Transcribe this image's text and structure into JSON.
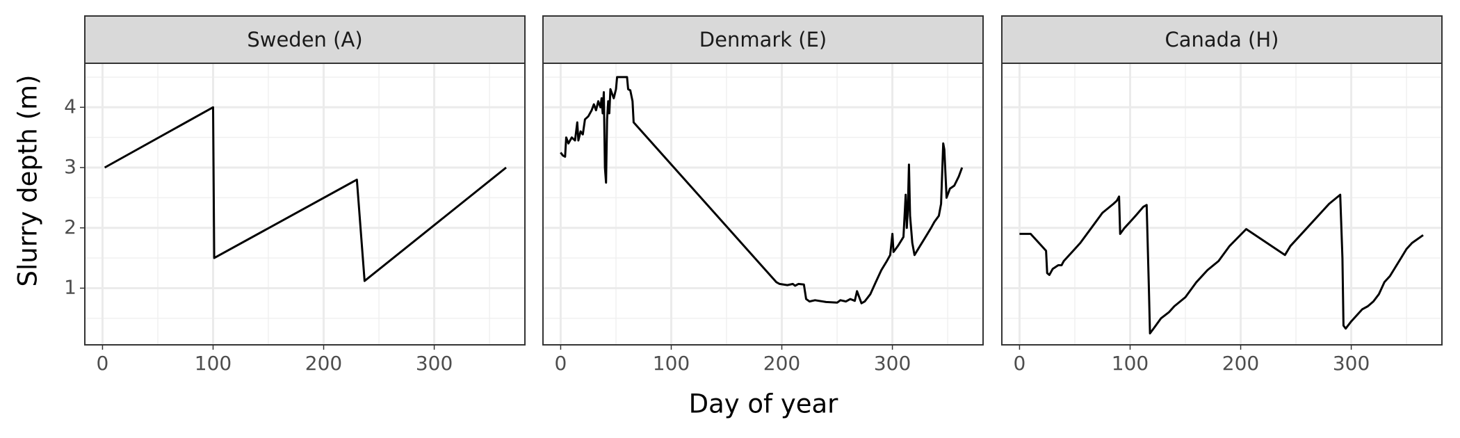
{
  "chart_data": {
    "type": "line",
    "xlabel": "Day of year",
    "ylabel": "Slurry depth (m)",
    "xlim": [
      -16,
      382
    ],
    "xticks": [
      0,
      100,
      200,
      300
    ],
    "ylim": [
      0.06,
      4.73
    ],
    "yticks": [
      1,
      2,
      3,
      4
    ],
    "grid": true,
    "color": "#000000",
    "facets": [
      {
        "title": "Sweden (A)",
        "x": [
          2,
          100,
          101,
          230,
          237,
          365
        ],
        "values": [
          3.0,
          4.0,
          1.5,
          2.8,
          1.12,
          3.0
        ]
      },
      {
        "title": "Denmark (E)",
        "x": [
          0,
          2,
          4,
          5,
          7,
          10,
          13,
          15,
          16,
          18,
          20,
          22,
          25,
          28,
          30,
          32,
          34,
          36,
          37,
          38,
          39,
          40,
          41,
          42,
          43,
          44,
          45,
          47,
          48,
          50,
          51,
          60,
          61,
          63,
          65,
          66,
          195,
          198,
          205,
          210,
          212,
          215,
          220,
          222,
          225,
          230,
          240,
          250,
          253,
          258,
          262,
          266,
          268,
          270,
          272,
          275,
          280,
          285,
          290,
          295,
          298,
          300,
          301,
          305,
          310,
          312,
          313,
          314,
          315,
          316,
          318,
          320,
          325,
          330,
          335,
          338,
          342,
          344,
          346,
          347,
          349,
          352,
          356,
          360,
          363
        ],
        "values": [
          3.25,
          3.2,
          3.18,
          3.5,
          3.4,
          3.5,
          3.45,
          3.75,
          3.45,
          3.6,
          3.55,
          3.8,
          3.85,
          3.95,
          4.05,
          3.95,
          4.1,
          4.0,
          4.15,
          3.9,
          4.25,
          3.0,
          2.75,
          3.8,
          4.1,
          3.9,
          4.3,
          4.2,
          4.15,
          4.3,
          4.5,
          4.5,
          4.3,
          4.28,
          4.1,
          3.75,
          1.1,
          1.07,
          1.05,
          1.07,
          1.04,
          1.07,
          1.06,
          0.82,
          0.78,
          0.8,
          0.77,
          0.76,
          0.8,
          0.78,
          0.82,
          0.79,
          0.95,
          0.85,
          0.75,
          0.78,
          0.9,
          1.1,
          1.3,
          1.45,
          1.55,
          1.9,
          1.6,
          1.7,
          1.85,
          2.55,
          2.0,
          2.3,
          3.05,
          2.2,
          1.75,
          1.55,
          1.7,
          1.85,
          2.0,
          2.1,
          2.2,
          2.4,
          3.4,
          3.3,
          2.5,
          2.65,
          2.7,
          2.85,
          3.0
        ]
      },
      {
        "title": "Canada (H)",
        "x": [
          0,
          10,
          20,
          24,
          25,
          27,
          30,
          35,
          38,
          40,
          50,
          55,
          65,
          75,
          85,
          88,
          90,
          91,
          95,
          100,
          105,
          112,
          115,
          117,
          118,
          122,
          128,
          135,
          140,
          150,
          160,
          170,
          180,
          190,
          205,
          240,
          245,
          260,
          280,
          290,
          292,
          293,
          295,
          300,
          310,
          315,
          320,
          325,
          330,
          335,
          340,
          345,
          350,
          355,
          365
        ],
        "values": [
          1.9,
          1.9,
          1.7,
          1.62,
          1.25,
          1.22,
          1.32,
          1.38,
          1.38,
          1.45,
          1.65,
          1.75,
          2.0,
          2.25,
          2.4,
          2.45,
          2.52,
          1.9,
          2.0,
          2.1,
          2.2,
          2.35,
          2.38,
          1.0,
          0.25,
          0.35,
          0.5,
          0.6,
          0.7,
          0.85,
          1.1,
          1.3,
          1.45,
          1.7,
          1.98,
          1.55,
          1.7,
          2.0,
          2.4,
          2.55,
          1.5,
          0.38,
          0.33,
          0.45,
          0.65,
          0.7,
          0.78,
          0.9,
          1.1,
          1.2,
          1.35,
          1.5,
          1.65,
          1.75,
          1.88
        ]
      }
    ]
  }
}
